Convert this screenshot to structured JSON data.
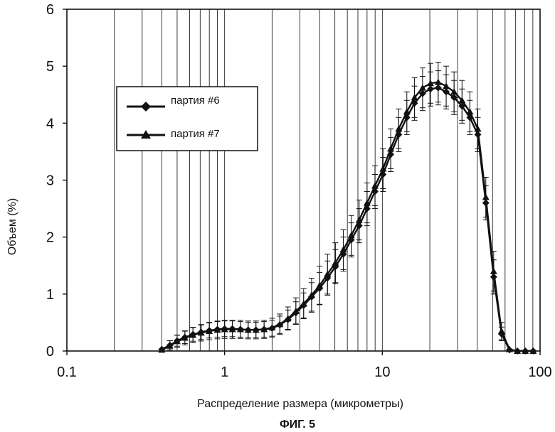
{
  "chart_data": {
    "type": "line",
    "x_scale": "log",
    "xlim": [
      0.1,
      100
    ],
    "ylim": [
      0,
      6
    ],
    "grid": "vertical log gridlines",
    "xlabel": "Распределение размера (микрометры)",
    "ylabel": "Объем (%)",
    "caption": "ФИГ. 5",
    "x_tick_labels": [
      "0.1",
      "1",
      "10",
      "100"
    ],
    "y_tick_labels": [
      "0",
      "1",
      "2",
      "3",
      "4",
      "5",
      "6"
    ],
    "legend_position": "upper-left",
    "series": [
      {
        "name": "партия #6",
        "marker": "diamond",
        "x": [
          0.4,
          0.45,
          0.5,
          0.56,
          0.63,
          0.71,
          0.8,
          0.9,
          1.0,
          1.12,
          1.26,
          1.41,
          1.58,
          1.78,
          2.0,
          2.24,
          2.52,
          2.83,
          3.17,
          3.56,
          4.0,
          4.49,
          5.04,
          5.66,
          6.35,
          7.13,
          8.0,
          8.98,
          10.1,
          11.3,
          12.7,
          14.3,
          16.0,
          18.0,
          20.2,
          22.6,
          25.4,
          28.5,
          32.0,
          35.9,
          40.3,
          45.3,
          50.8,
          57.0,
          64.0,
          71.8,
          80.6,
          90.5
        ],
        "y": [
          0.03,
          0.1,
          0.18,
          0.24,
          0.29,
          0.33,
          0.36,
          0.38,
          0.39,
          0.39,
          0.38,
          0.37,
          0.37,
          0.38,
          0.4,
          0.46,
          0.55,
          0.67,
          0.8,
          0.95,
          1.1,
          1.28,
          1.48,
          1.7,
          1.95,
          2.2,
          2.5,
          2.8,
          3.1,
          3.45,
          3.8,
          4.1,
          4.35,
          4.52,
          4.6,
          4.62,
          4.55,
          4.45,
          4.3,
          4.1,
          3.8,
          2.6,
          1.3,
          0.3,
          0.02,
          0.0,
          0.0,
          0.0
        ],
        "error": 0.3
      },
      {
        "name": "партия #7",
        "marker": "triangle",
        "x": [
          0.4,
          0.45,
          0.5,
          0.56,
          0.63,
          0.71,
          0.8,
          0.9,
          1.0,
          1.12,
          1.26,
          1.41,
          1.58,
          1.78,
          2.0,
          2.24,
          2.52,
          2.83,
          3.17,
          3.56,
          4.0,
          4.49,
          5.04,
          5.66,
          6.35,
          7.13,
          8.0,
          8.98,
          10.1,
          11.3,
          12.7,
          14.3,
          16.0,
          18.0,
          20.2,
          22.6,
          25.4,
          28.5,
          32.0,
          35.9,
          40.3,
          45.3,
          50.8,
          57.0,
          64.0,
          71.8,
          80.6,
          90.5
        ],
        "y": [
          0.02,
          0.09,
          0.17,
          0.23,
          0.28,
          0.32,
          0.35,
          0.37,
          0.38,
          0.38,
          0.38,
          0.37,
          0.37,
          0.38,
          0.41,
          0.47,
          0.57,
          0.7,
          0.83,
          0.98,
          1.15,
          1.35,
          1.55,
          1.78,
          2.03,
          2.3,
          2.6,
          2.9,
          3.2,
          3.55,
          3.9,
          4.2,
          4.45,
          4.62,
          4.7,
          4.72,
          4.65,
          4.55,
          4.4,
          4.2,
          3.9,
          2.7,
          1.4,
          0.35,
          0.03,
          0.0,
          0.0,
          0.0
        ],
        "error": 0.35
      }
    ]
  }
}
